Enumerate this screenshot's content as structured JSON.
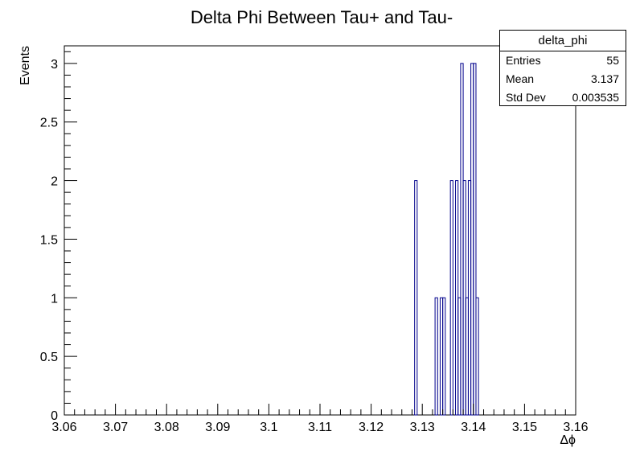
{
  "chart_data": {
    "type": "bar",
    "title": "Delta Phi Between Tau+ and Tau-",
    "xlabel": "Δϕ",
    "ylabel": "Events",
    "xlim": [
      3.06,
      3.16
    ],
    "ylim": [
      0,
      3.15
    ],
    "bin_width": 0.0005,
    "x_ticks": [
      3.06,
      3.07,
      3.08,
      3.09,
      3.1,
      3.11,
      3.12,
      3.13,
      3.14,
      3.15,
      3.16
    ],
    "x_tick_labels": [
      "3.06",
      "3.07",
      "3.08",
      "3.09",
      "3.1",
      "3.11",
      "3.12",
      "3.13",
      "3.14",
      "3.15",
      "3.16"
    ],
    "y_ticks": [
      0,
      0.5,
      1,
      1.5,
      2,
      2.5,
      3
    ],
    "y_tick_labels": [
      "0",
      "0.5",
      "1",
      "1.5",
      "2",
      "2.5",
      "3"
    ],
    "bins": [
      {
        "x_low": 3.1285,
        "x_high": 3.129,
        "count": 2
      },
      {
        "x_low": 3.1325,
        "x_high": 3.133,
        "count": 1
      },
      {
        "x_low": 3.1335,
        "x_high": 3.134,
        "count": 1
      },
      {
        "x_low": 3.134,
        "x_high": 3.1345,
        "count": 1
      },
      {
        "x_low": 3.1355,
        "x_high": 3.136,
        "count": 2
      },
      {
        "x_low": 3.1365,
        "x_high": 3.137,
        "count": 2
      },
      {
        "x_low": 3.137,
        "x_high": 3.1375,
        "count": 1
      },
      {
        "x_low": 3.1375,
        "x_high": 3.138,
        "count": 3
      },
      {
        "x_low": 3.138,
        "x_high": 3.1385,
        "count": 2
      },
      {
        "x_low": 3.1385,
        "x_high": 3.139,
        "count": 1
      },
      {
        "x_low": 3.139,
        "x_high": 3.1395,
        "count": 2
      },
      {
        "x_low": 3.1395,
        "x_high": 3.14,
        "count": 3
      },
      {
        "x_low": 3.14,
        "x_high": 3.1405,
        "count": 3
      },
      {
        "x_low": 3.1405,
        "x_high": 3.141,
        "count": 1
      }
    ],
    "line_color": "#00008b",
    "grid": false,
    "legend_placement": "top-right"
  },
  "stats": {
    "title": "delta_phi",
    "rows": [
      {
        "label": "Entries",
        "value": "55"
      },
      {
        "label": "Mean",
        "value": "3.137"
      },
      {
        "label": "Std Dev",
        "value": "0.003535"
      }
    ]
  }
}
